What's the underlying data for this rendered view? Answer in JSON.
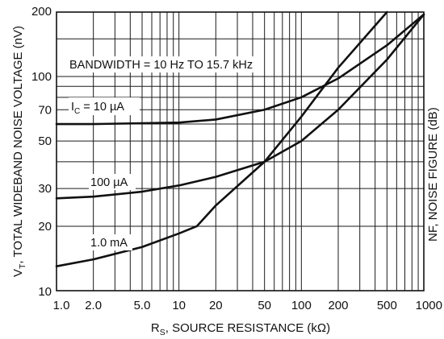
{
  "chart_data": {
    "type": "line",
    "title": "",
    "x_scale": "log",
    "y_scale": "log",
    "xlim": [
      1,
      1000
    ],
    "ylim": [
      10,
      200
    ],
    "grid": true,
    "x_tick_labels": [
      "1.0",
      "2.0",
      "5.0",
      "10",
      "20",
      "50",
      "100",
      "200",
      "500",
      "1000"
    ],
    "y_tick_labels": [
      "10",
      "20",
      "30",
      "50",
      "70",
      "100",
      "200"
    ],
    "xlabel": {
      "main": "R",
      "sub": "S",
      "rest": ", SOURCE RESISTANCE (kΩ)"
    },
    "ylabel": {
      "main": "V",
      "sub": "T",
      "rest": ", TOTAL WIDEBAND NOISE VOLTAGE (nV)"
    },
    "right_axis_label": "NF, NOISE FIGURE (dB)",
    "annotations": {
      "bandwidth": "BANDWIDTH = 10 Hz TO 15.7 kHz"
    },
    "series": [
      {
        "name": "I_C = 10 µA",
        "label_prefix": "I",
        "label_sub": "C",
        "label_rest": " = 10 µA",
        "x": [
          1,
          2,
          5,
          10,
          20,
          50,
          100,
          200,
          500,
          1000
        ],
        "y": [
          60,
          60,
          60.5,
          61,
          63,
          70,
          80,
          98,
          140,
          195
        ]
      },
      {
        "name": "100 µA",
        "label_prefix": "100 µA",
        "x": [
          1,
          2,
          5,
          10,
          20,
          50,
          100,
          200,
          500,
          1000
        ],
        "y": [
          27,
          27.5,
          29,
          31,
          34,
          40,
          50,
          70,
          120,
          195
        ]
      },
      {
        "name": "1.0 mA",
        "label_prefix": "1.0 mA",
        "x": [
          1,
          2,
          5,
          10,
          14,
          20,
          50,
          100,
          200,
          500
        ],
        "y": [
          13,
          14,
          16,
          18.5,
          20,
          25,
          40,
          65,
          110,
          200
        ]
      }
    ]
  }
}
